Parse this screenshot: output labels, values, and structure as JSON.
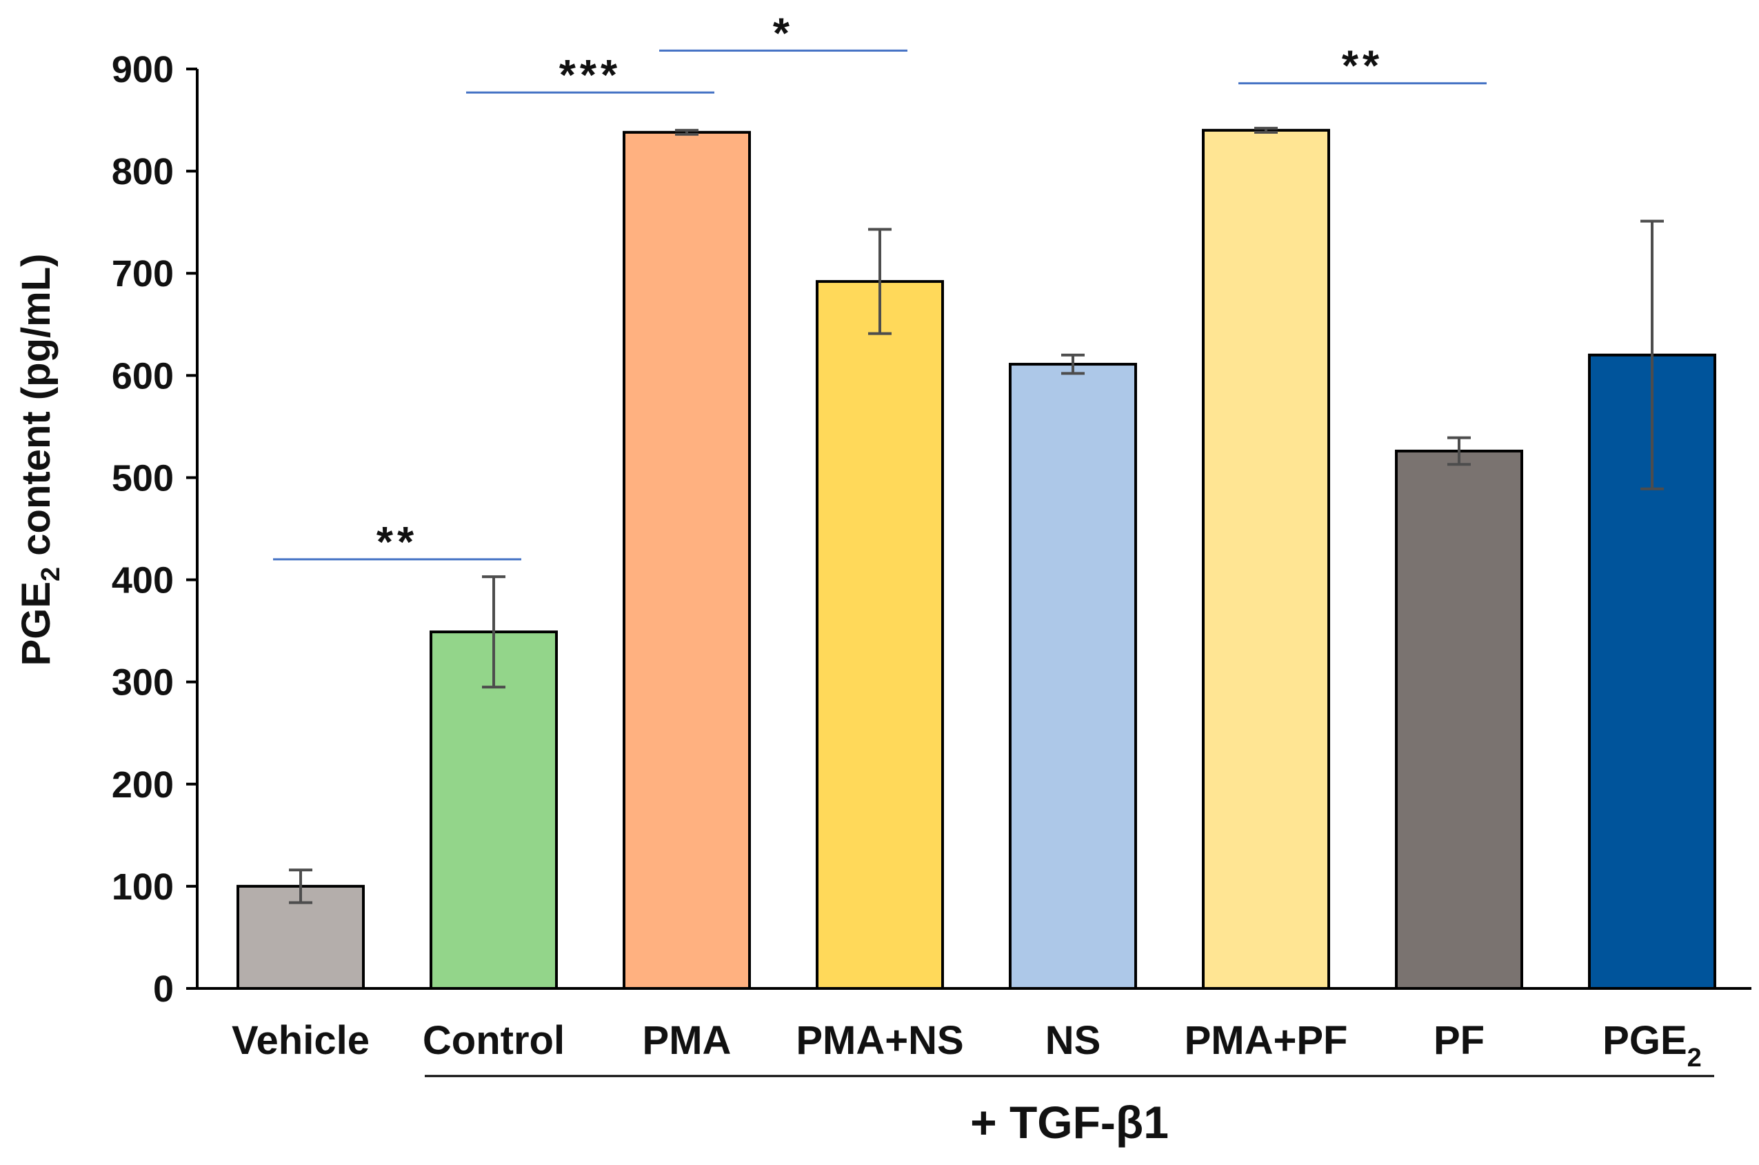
{
  "chart_data": {
    "type": "bar",
    "title": "",
    "xlabel": "",
    "ylabel": "PGE",
    "ylabel_sub": "2",
    "ylabel_rest": " content (pg/mL)",
    "ylim": [
      0,
      900
    ],
    "yticks": [
      0,
      100,
      200,
      300,
      400,
      500,
      600,
      700,
      800,
      900
    ],
    "grid": false,
    "categories": [
      "Vehicle",
      "Control",
      "PMA",
      "PMA+NS",
      "NS",
      "PMA+PF",
      "PF",
      "PGE2"
    ],
    "category_display": [
      {
        "main": "Vehicle",
        "sub": ""
      },
      {
        "main": "Control",
        "sub": ""
      },
      {
        "main": "PMA",
        "sub": ""
      },
      {
        "main": "PMA+NS",
        "sub": ""
      },
      {
        "main": "NS",
        "sub": ""
      },
      {
        "main": "PMA+PF",
        "sub": ""
      },
      {
        "main": "PF",
        "sub": ""
      },
      {
        "main": "PGE",
        "sub": "2"
      }
    ],
    "values": [
      100,
      349,
      838,
      692,
      611,
      840,
      526,
      620
    ],
    "errors": [
      16,
      54,
      2,
      51,
      9,
      2,
      13,
      131
    ],
    "colors": [
      "#b4aeab",
      "#93d58a",
      "#ffb180",
      "#ffd95a",
      "#adc8e8",
      "#ffe593",
      "#7a7370",
      "#00549b"
    ],
    "group_bracket": {
      "label": "+ TGF-β1",
      "from": "Control",
      "to": "PGE2"
    },
    "significance": [
      {
        "from": "Vehicle",
        "to": "Control",
        "label": "**",
        "level": 420
      },
      {
        "from": "Control",
        "to": "PMA",
        "label": "***",
        "level": 877
      },
      {
        "from": "PMA",
        "to": "PMA+NS",
        "label": "*",
        "level": 918
      },
      {
        "from": "PMA+PF",
        "to": "PF",
        "label": "**",
        "level": 886
      }
    ],
    "significance_color": "#4472c4"
  }
}
